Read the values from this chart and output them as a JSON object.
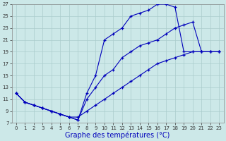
{
  "title": "Graphe des températures (°C)",
  "background_color": "#cce8e8",
  "line_color": "#0000bb",
  "grid_color": "#aacccc",
  "xlim": [
    -0.5,
    23.5
  ],
  "ylim": [
    7,
    27
  ],
  "xticks": [
    0,
    1,
    2,
    3,
    4,
    5,
    6,
    7,
    8,
    9,
    10,
    11,
    12,
    13,
    14,
    15,
    16,
    17,
    18,
    19,
    20,
    21,
    22,
    23
  ],
  "yticks": [
    7,
    9,
    11,
    13,
    15,
    17,
    19,
    21,
    23,
    25,
    27
  ],
  "series": [
    {
      "x": [
        0,
        1,
        2,
        3,
        4,
        5,
        6,
        7,
        8,
        9,
        10,
        11,
        12,
        13,
        14,
        15,
        16,
        17,
        18,
        19,
        20,
        21,
        22,
        23
      ],
      "y": [
        12,
        10.5,
        10,
        9.5,
        9,
        8.5,
        8,
        8,
        9,
        10,
        11,
        12,
        13,
        14,
        15,
        16,
        17,
        17.5,
        18,
        18.5,
        19,
        19,
        19,
        19
      ]
    },
    {
      "x": [
        0,
        1,
        2,
        3,
        4,
        5,
        6,
        7,
        8,
        9,
        10,
        11,
        12,
        13,
        14,
        15,
        16,
        17,
        18,
        19,
        20,
        21,
        22,
        23
      ],
      "y": [
        12,
        10.5,
        10,
        9.5,
        9,
        8.5,
        8,
        7.5,
        12,
        15,
        21,
        22,
        23,
        25,
        25.5,
        26,
        27,
        27,
        26.5,
        19,
        19,
        19,
        19,
        19
      ]
    },
    {
      "x": [
        0,
        1,
        2,
        3,
        4,
        5,
        6,
        7,
        8,
        9,
        10,
        11,
        12,
        13,
        14,
        15,
        16,
        17,
        18,
        19,
        20,
        21,
        22,
        23
      ],
      "y": [
        12,
        10.5,
        10,
        9.5,
        9,
        8.5,
        8,
        7.5,
        11,
        13,
        15,
        16,
        18,
        19,
        20,
        20.5,
        21,
        22,
        23,
        23.5,
        24,
        19,
        19,
        19
      ]
    }
  ],
  "xlabel_fontsize": 7,
  "tick_fontsize": 5,
  "xlabel_color": "#0000bb"
}
